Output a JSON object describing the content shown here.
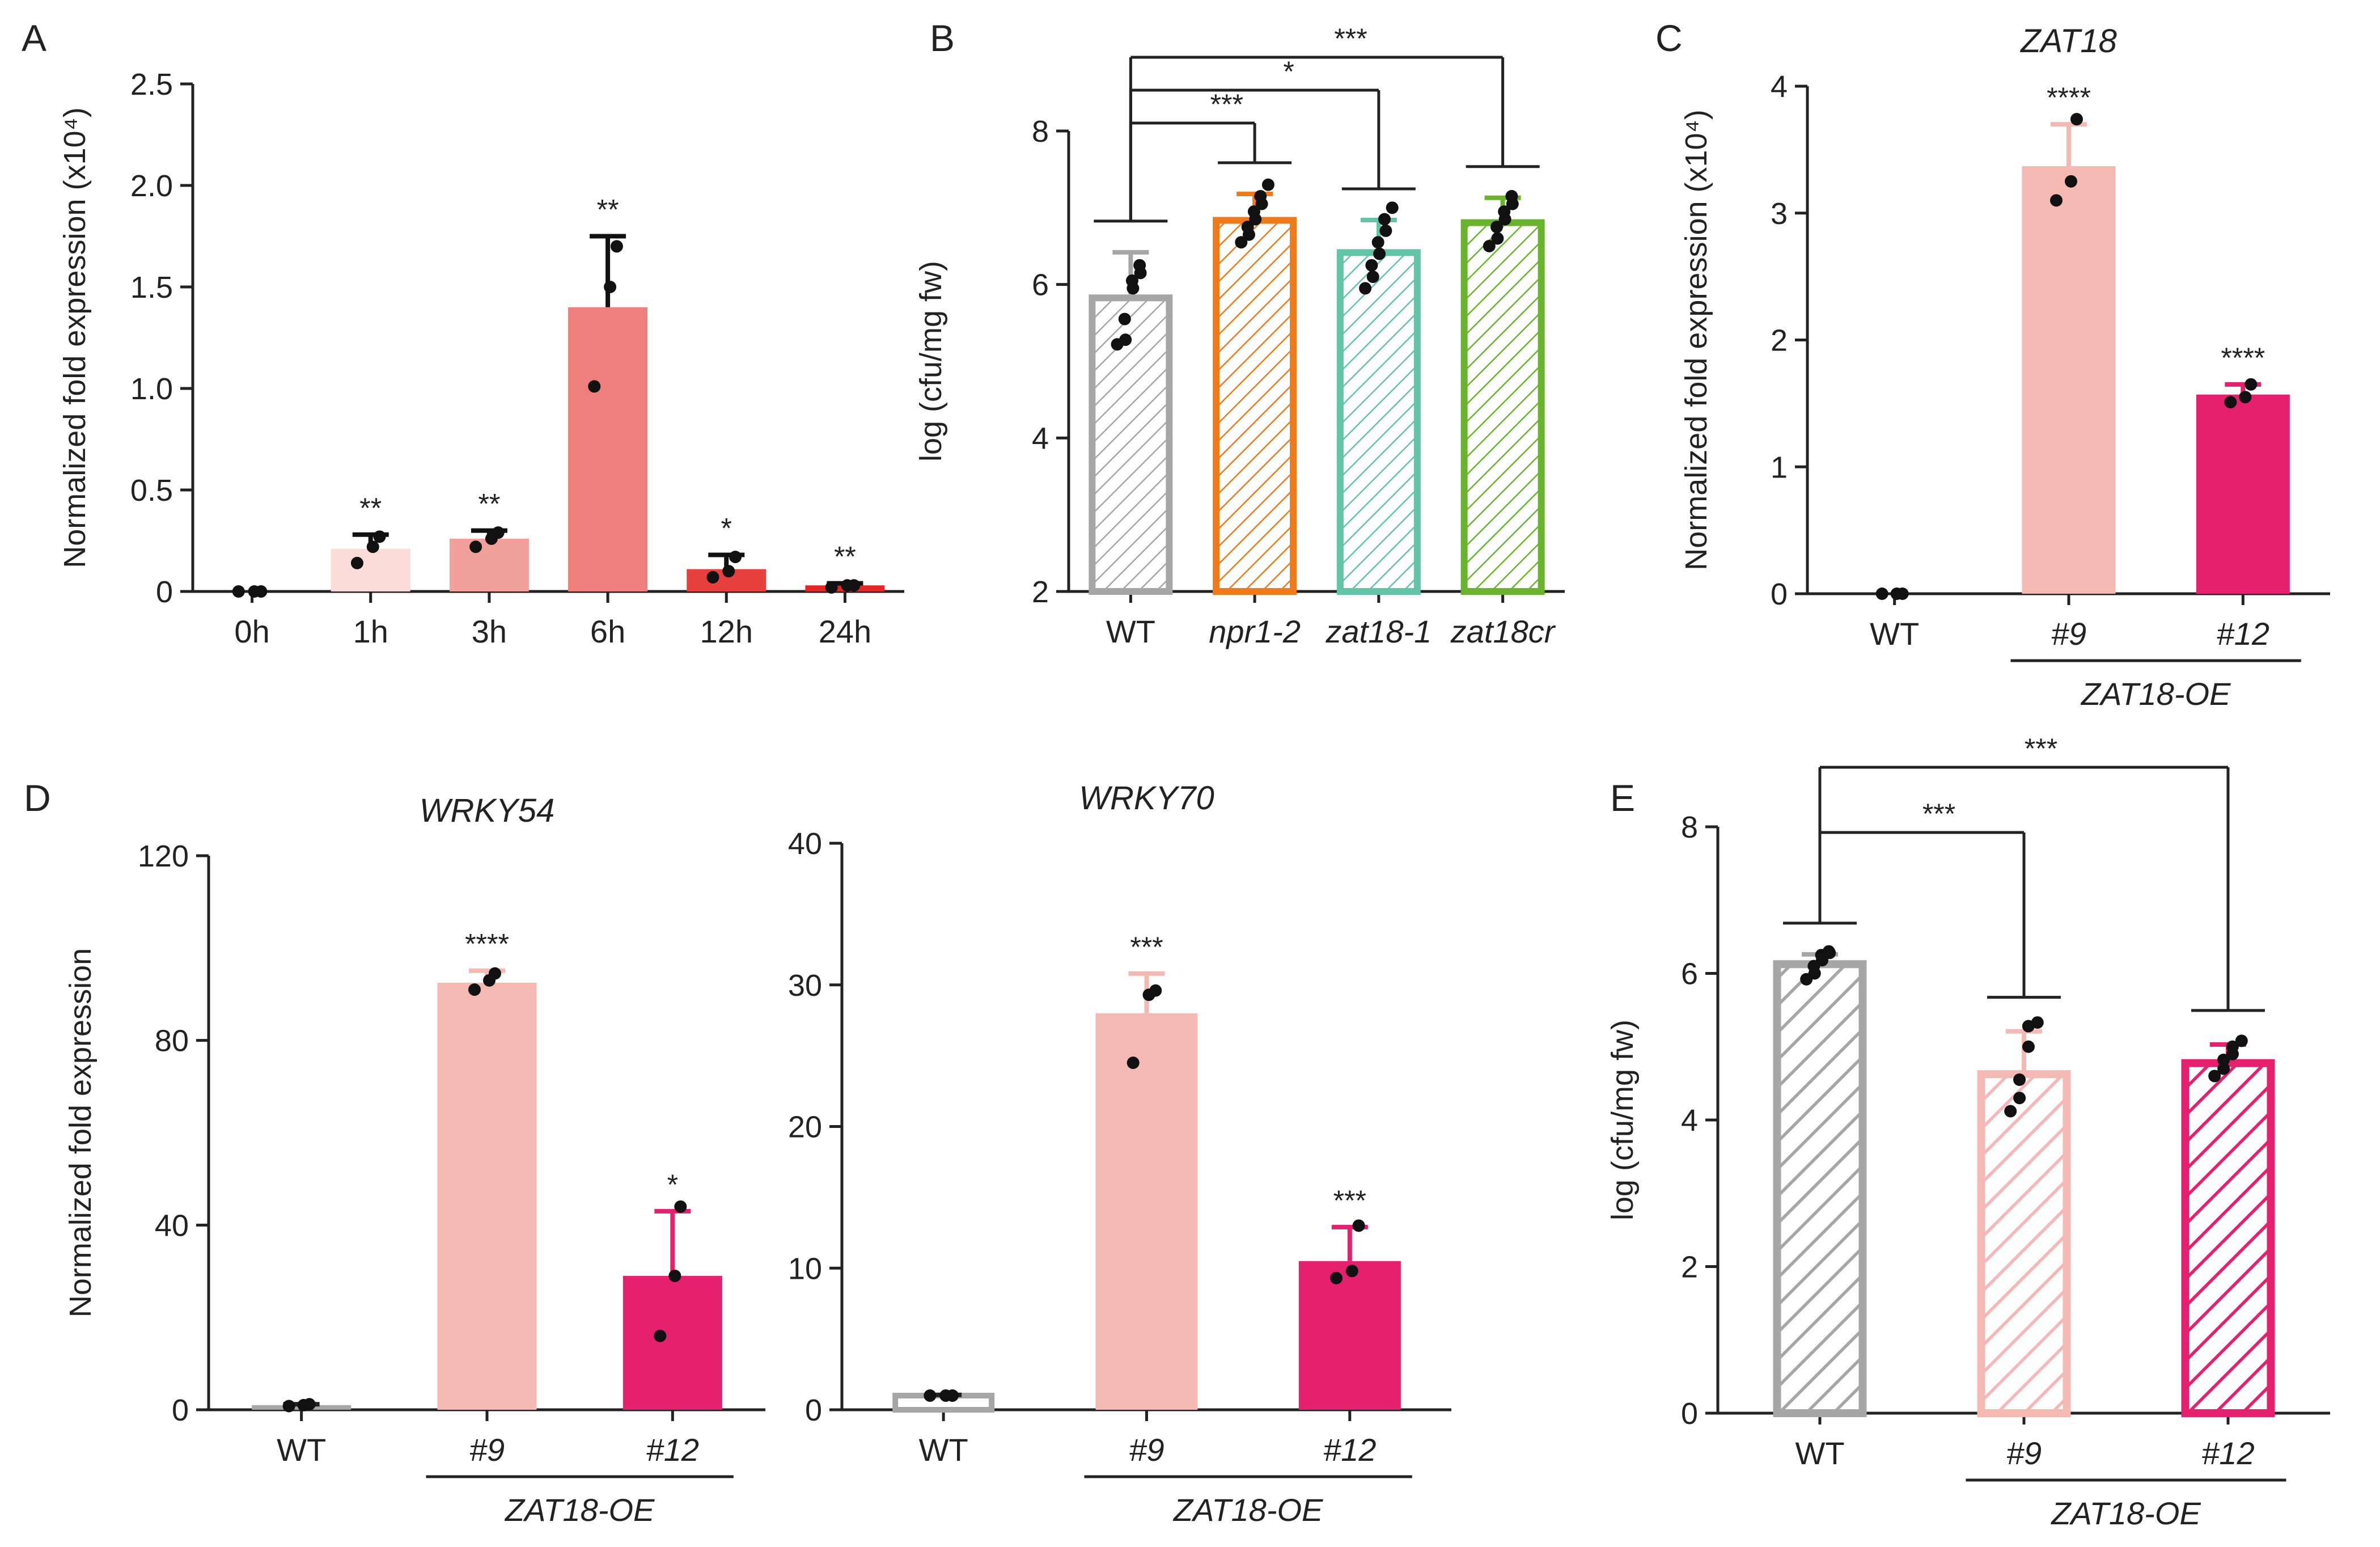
{
  "colors": {
    "axis": "#222222",
    "grey": "#a6a6a6",
    "orange": "#ef7a1a",
    "teal": "#63c3a5",
    "green": "#6ab42d",
    "pink_light": "#f5b9b4",
    "magenta": "#e4206f",
    "time_1h": "#fbdcd9",
    "time_3h": "#f2a09c",
    "time_6h": "#ee7f7d",
    "time_12h": "#e8403f",
    "time_24h": "#e2262a",
    "dot": "#111111"
  },
  "chart_data": [
    {
      "panel": "A",
      "type": "bar",
      "title": "",
      "ylabel": "Normalized fold expression (x10⁴)",
      "ylim": [
        0,
        2.5
      ],
      "yticks": [
        0,
        0.5,
        1.0,
        1.5,
        2.0,
        2.5
      ],
      "ytick_labels": [
        "0",
        "0.5",
        "1.0",
        "1.5",
        "2.0",
        "2.5"
      ],
      "categories": [
        "0h",
        "1h",
        "3h",
        "6h",
        "12h",
        "24h"
      ],
      "category_italic": [
        false,
        false,
        false,
        false,
        false,
        false
      ],
      "values": [
        0.0,
        0.21,
        0.26,
        1.4,
        0.11,
        0.03
      ],
      "errors": [
        0.0,
        0.07,
        0.04,
        0.35,
        0.07,
        0.01
      ],
      "points": [
        [
          0,
          0,
          0
        ],
        [
          0.14,
          0.22,
          0.27
        ],
        [
          0.22,
          0.26,
          0.29
        ],
        [
          1.01,
          1.5,
          1.7
        ],
        [
          0.07,
          0.1,
          0.17
        ],
        [
          0.02,
          0.03,
          0.03
        ]
      ],
      "colors": [
        "#cccccc",
        "#fbdcd9",
        "#f2a09c",
        "#ee7f7d",
        "#e8403f",
        "#e2262a"
      ],
      "hatched": [
        false,
        false,
        false,
        false,
        false,
        false
      ],
      "significance": [
        "",
        "**",
        "**",
        "**",
        "*",
        "**"
      ],
      "brackets": [],
      "group_label": null
    },
    {
      "panel": "B",
      "type": "bar",
      "title": "",
      "ylabel": "log (cfu/mg fw)",
      "ylim": [
        2,
        8
      ],
      "yticks": [
        2,
        4,
        6,
        8
      ],
      "ytick_labels": [
        "2",
        "4",
        "6",
        "8"
      ],
      "categories": [
        "WT",
        "npr1-2",
        "zat18-1",
        "zat18cr"
      ],
      "category_italic": [
        false,
        true,
        true,
        true
      ],
      "values": [
        5.87,
        6.88,
        6.46,
        6.85
      ],
      "errors": [
        0.55,
        0.3,
        0.38,
        0.28
      ],
      "points": [
        [
          5.22,
          5.28,
          5.55,
          5.95,
          6.05,
          6.15,
          6.25
        ],
        [
          6.55,
          6.65,
          6.75,
          6.85,
          6.95,
          7.05,
          7.15,
          7.3
        ],
        [
          5.95,
          6.1,
          6.25,
          6.4,
          6.55,
          6.7,
          6.85,
          7.0
        ],
        [
          6.5,
          6.6,
          6.75,
          6.85,
          6.95,
          7.05,
          7.15
        ]
      ],
      "colors": [
        "#a6a6a6",
        "#ef7a1a",
        "#63c3a5",
        "#6ab42d"
      ],
      "hatched": [
        true,
        true,
        true,
        true
      ],
      "significance": [
        "",
        "",
        "",
        ""
      ],
      "brackets": [
        {
          "from": 0,
          "to": 1,
          "label": "***"
        },
        {
          "from": 0,
          "to": 2,
          "label": "*"
        },
        {
          "from": 0,
          "to": 3,
          "label": "***"
        }
      ],
      "group_label": null
    },
    {
      "panel": "C",
      "type": "bar",
      "title": "ZAT18",
      "ylabel": "Normalized fold expression (x10⁴)",
      "ylim": [
        0,
        4
      ],
      "yticks": [
        0,
        1,
        2,
        3,
        4
      ],
      "ytick_labels": [
        "0",
        "1",
        "2",
        "3",
        "4"
      ],
      "categories": [
        "WT",
        "#9",
        "#12"
      ],
      "category_italic": [
        false,
        true,
        true
      ],
      "values": [
        0.0,
        3.37,
        1.57
      ],
      "errors": [
        0.0,
        0.33,
        0.08
      ],
      "points": [
        [
          0,
          0,
          0
        ],
        [
          3.1,
          3.25,
          3.74
        ],
        [
          1.51,
          1.55,
          1.65
        ]
      ],
      "colors": [
        "#a6a6a6",
        "#f5b9b4",
        "#e4206f"
      ],
      "hatched": [
        false,
        false,
        false
      ],
      "significance": [
        "",
        "****",
        "****"
      ],
      "brackets": [],
      "group_label": "ZAT18-OE"
    },
    {
      "panel": "D",
      "type": "bar",
      "title": "WRKY54",
      "ylabel": "Normalized fold expression",
      "ylim": [
        0,
        120
      ],
      "yticks": [
        0,
        40,
        80,
        120
      ],
      "ytick_labels": [
        "0",
        "40",
        "80",
        "120"
      ],
      "categories": [
        "WT",
        "#9",
        "#12"
      ],
      "category_italic": [
        false,
        true,
        true
      ],
      "values": [
        1.0,
        92.5,
        29.0
      ],
      "errors": [
        0.2,
        2.6,
        14.0
      ],
      "points": [
        [
          0.8,
          1.0,
          1.2
        ],
        [
          91.0,
          93.0,
          94.5
        ],
        [
          16.0,
          29.0,
          44.0
        ]
      ],
      "colors": [
        "#a6a6a6",
        "#f5b9b4",
        "#e4206f"
      ],
      "hatched": [
        false,
        false,
        false
      ],
      "significance": [
        "",
        "****",
        "*"
      ],
      "brackets": [],
      "group_label": "ZAT18-OE"
    },
    {
      "panel": "",
      "type": "bar",
      "title": "WRKY70",
      "ylabel": "",
      "ylim": [
        0,
        40
      ],
      "yticks": [
        0,
        10,
        20,
        30,
        40
      ],
      "ytick_labels": [
        "0",
        "10",
        "20",
        "30",
        "40"
      ],
      "categories": [
        "WT",
        "#9",
        "#12"
      ],
      "category_italic": [
        false,
        true,
        true
      ],
      "values": [
        1.0,
        28.0,
        10.5
      ],
      "errors": [
        0.05,
        2.8,
        2.4
      ],
      "points": [
        [
          1.0,
          1.0,
          1.0
        ],
        [
          24.5,
          29.3,
          29.6
        ],
        [
          9.3,
          9.8,
          13.0
        ]
      ],
      "colors": [
        "#a6a6a6",
        "#f5b9b4",
        "#e4206f"
      ],
      "hatched": [
        false,
        false,
        false
      ],
      "outline_only": [
        true,
        false,
        false
      ],
      "significance": [
        "",
        "***",
        "***"
      ],
      "brackets": [],
      "group_label": "ZAT18-OE"
    },
    {
      "panel": "E",
      "type": "bar",
      "title": "",
      "ylabel": "log (cfu/mg fw)",
      "ylim": [
        0,
        8
      ],
      "yticks": [
        0,
        2,
        4,
        6,
        8
      ],
      "ytick_labels": [
        "0",
        "2",
        "4",
        "6",
        "8"
      ],
      "categories": [
        "WT",
        "#9",
        "#12"
      ],
      "category_italic": [
        false,
        true,
        true
      ],
      "values": [
        6.18,
        4.68,
        4.83
      ],
      "errors": [
        0.08,
        0.53,
        0.2
      ],
      "points": [
        [
          5.92,
          6.0,
          6.1,
          6.18,
          6.25,
          6.28,
          6.3
        ],
        [
          4.12,
          4.3,
          4.55,
          5.0,
          5.28,
          5.33
        ],
        [
          4.6,
          4.7,
          4.82,
          4.9,
          5.0,
          5.08
        ]
      ],
      "colors": [
        "#a6a6a6",
        "#f5b9b4",
        "#e4206f"
      ],
      "hatched": [
        true,
        true,
        true
      ],
      "significance": [
        "",
        "",
        ""
      ],
      "brackets": [
        {
          "from": 0,
          "to": 1,
          "label": "***"
        },
        {
          "from": 0,
          "to": 2,
          "label": "***"
        }
      ],
      "group_label": "ZAT18-OE"
    }
  ]
}
